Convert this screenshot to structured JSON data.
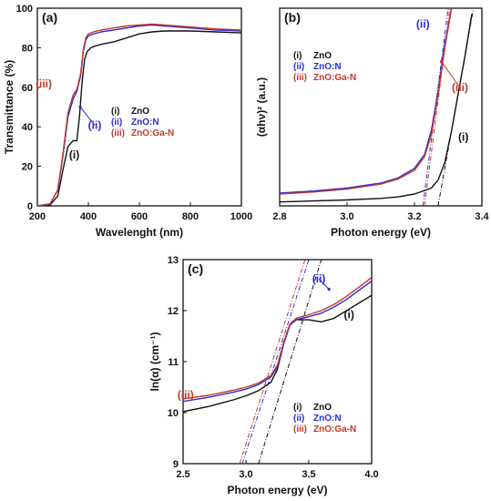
{
  "colors": {
    "zno": "#111111",
    "zno_n": "#2b2bd6",
    "zno_ga_n": "#c0392b",
    "axis": "#111111"
  },
  "chart_data": [
    {
      "id": "a",
      "type": "line",
      "panel_label": "(a)",
      "xlabel": "Wavelenght (nm)",
      "ylabel": "Transmittance (%)",
      "xlim": [
        200,
        1000
      ],
      "ylim": [
        0,
        100
      ],
      "xticks": [
        200,
        400,
        600,
        800,
        1000
      ],
      "yticks": [
        0,
        20,
        40,
        60,
        80,
        100
      ],
      "legend": {
        "position": "center-right",
        "entries": [
          {
            "num": "(i)",
            "name": "ZnO",
            "series": 0
          },
          {
            "num": "(ii)",
            "name": "ZnO:N",
            "series": 1
          },
          {
            "num": "(iii)",
            "name": "ZnO:Ga-N",
            "series": 2
          }
        ]
      },
      "annotations": [
        {
          "text": "(i)",
          "series": 0,
          "x": 345,
          "y": 24,
          "arrow": false
        },
        {
          "text": "(ii)",
          "series": 1,
          "x": 425,
          "y": 39,
          "arrow": true,
          "tx": 368,
          "ty": 50
        },
        {
          "text": "(iii)",
          "series": 2,
          "x": 225,
          "y": 60,
          "arrow": false
        }
      ],
      "series": [
        {
          "name": "ZnO",
          "x": [
            200,
            250,
            280,
            300,
            320,
            340,
            355,
            365,
            375,
            385,
            395,
            410,
            430,
            460,
            500,
            550,
            600,
            650,
            700,
            800,
            900,
            1000
          ],
          "y": [
            0,
            0.5,
            5,
            18,
            30,
            33,
            33,
            45,
            62,
            74,
            78,
            80,
            81,
            82,
            83,
            85,
            87,
            88,
            88.5,
            88.5,
            88,
            87.5
          ]
        },
        {
          "name": "ZnO:N",
          "x": [
            200,
            250,
            280,
            300,
            320,
            340,
            355,
            370,
            380,
            390,
            400,
            420,
            450,
            500,
            550,
            600,
            650,
            700,
            800,
            900,
            1000
          ],
          "y": [
            0,
            1,
            8,
            25,
            45,
            54,
            58,
            66,
            78,
            84,
            86,
            87,
            88,
            89,
            90,
            91,
            91.5,
            91,
            90,
            89,
            88.5
          ]
        },
        {
          "name": "ZnO:Ga-N",
          "x": [
            200,
            250,
            280,
            300,
            320,
            340,
            355,
            370,
            380,
            390,
            400,
            420,
            450,
            500,
            550,
            600,
            650,
            700,
            800,
            900,
            1000
          ],
          "y": [
            0,
            1,
            8,
            26,
            47,
            56,
            59,
            67,
            79,
            85,
            87,
            88,
            89,
            90,
            91,
            91.5,
            92,
            91.5,
            90.5,
            89.5,
            89
          ]
        }
      ]
    },
    {
      "id": "b",
      "type": "line",
      "panel_label": "(b)",
      "xlabel": "Photon energy (eV)",
      "ylabel": "(αhν)² (a.u.)",
      "xlim": [
        2.8,
        3.4
      ],
      "ylim": [
        0,
        1
      ],
      "xticks": [
        2.8,
        3.0,
        3.2,
        3.4
      ],
      "yticks": [],
      "legend": {
        "position": "upper-left",
        "entries": [
          {
            "num": "(i)",
            "name": "ZnO",
            "series": 0
          },
          {
            "num": "(ii)",
            "name": "ZnO:N",
            "series": 1
          },
          {
            "num": "(iii)",
            "name": "ZnO:Ga-N",
            "series": 2
          }
        ]
      },
      "annotations": [
        {
          "text": "(ii)",
          "series": 1,
          "x": 3.225,
          "y": 0.9,
          "arrow": false
        },
        {
          "text": "(iii)",
          "series": 2,
          "x": 3.335,
          "y": 0.58,
          "arrow": true,
          "tx": 3.28,
          "ty": 0.73
        },
        {
          "text": "(i)",
          "series": 0,
          "x": 3.345,
          "y": 0.33,
          "arrow": false
        }
      ],
      "fits": [
        {
          "series": 0,
          "x": [
            3.27,
            3.375
          ],
          "y": [
            0,
            1
          ]
        },
        {
          "series": 1,
          "x": [
            3.225,
            3.3
          ],
          "y": [
            0,
            1
          ]
        },
        {
          "series": 2,
          "x": [
            3.23,
            3.305
          ],
          "y": [
            0,
            1
          ]
        }
      ],
      "series": [
        {
          "name": "ZnO",
          "x": [
            2.8,
            2.9,
            3.0,
            3.1,
            3.15,
            3.2,
            3.25,
            3.27,
            3.29,
            3.31,
            3.33,
            3.35,
            3.37
          ],
          "y": [
            0.02,
            0.025,
            0.03,
            0.038,
            0.045,
            0.06,
            0.09,
            0.13,
            0.22,
            0.38,
            0.57,
            0.76,
            0.97
          ]
        },
        {
          "name": "ZnO:N",
          "x": [
            2.8,
            2.9,
            3.0,
            3.1,
            3.15,
            3.2,
            3.23,
            3.25,
            3.27,
            3.29,
            3.31
          ],
          "y": [
            0.065,
            0.075,
            0.09,
            0.115,
            0.14,
            0.19,
            0.26,
            0.38,
            0.58,
            0.82,
            1.0
          ]
        },
        {
          "name": "ZnO:Ga-N",
          "x": [
            2.8,
            2.9,
            3.0,
            3.1,
            3.15,
            3.2,
            3.23,
            3.25,
            3.27,
            3.29,
            3.31
          ],
          "y": [
            0.06,
            0.07,
            0.085,
            0.11,
            0.135,
            0.18,
            0.25,
            0.36,
            0.56,
            0.8,
            1.0
          ]
        }
      ]
    },
    {
      "id": "c",
      "type": "line",
      "panel_label": "(c)",
      "xlabel": "Photon energy (eV)",
      "ylabel": "ln(α) (cm⁻¹)",
      "xlim": [
        2.5,
        4.0
      ],
      "ylim": [
        9,
        13
      ],
      "xticks": [
        2.5,
        3.0,
        3.5,
        4.0
      ],
      "yticks": [
        9,
        10,
        11,
        12,
        13
      ],
      "legend": {
        "position": "lower-right",
        "entries": [
          {
            "num": "(i)",
            "name": "ZnO",
            "series": 0
          },
          {
            "num": "(ii)",
            "name": "ZnO:N",
            "series": 1
          },
          {
            "num": "(iii)",
            "name": "ZnO:Ga-N",
            "series": 2
          }
        ]
      },
      "annotations": [
        {
          "text": "(ii)",
          "series": 1,
          "x": 3.58,
          "y": 12.55,
          "arrow": true,
          "tx": 3.66,
          "ty": 12.42
        },
        {
          "text": "(i)",
          "series": 0,
          "x": 3.82,
          "y": 11.85,
          "arrow": false
        },
        {
          "text": "(iii)",
          "series": 2,
          "x": 2.52,
          "y": 10.28,
          "arrow": false
        }
      ],
      "fits": [
        {
          "series": 0,
          "x": [
            3.1,
            3.6
          ],
          "y": [
            9,
            13
          ]
        },
        {
          "series": 1,
          "x": [
            2.97,
            3.5
          ],
          "y": [
            9,
            13
          ]
        },
        {
          "series": 2,
          "x": [
            2.95,
            3.47
          ],
          "y": [
            9,
            13
          ]
        }
      ],
      "series": [
        {
          "name": "ZnO",
          "x": [
            2.5,
            2.7,
            2.9,
            3.0,
            3.1,
            3.2,
            3.25,
            3.3,
            3.35,
            3.4,
            3.5,
            3.6,
            3.7,
            3.8,
            3.9,
            4.0
          ],
          "y": [
            10.02,
            10.12,
            10.25,
            10.33,
            10.43,
            10.6,
            10.85,
            11.35,
            11.72,
            11.82,
            11.82,
            11.78,
            11.85,
            12.0,
            12.15,
            12.3
          ]
        },
        {
          "name": "ZnO:N",
          "x": [
            2.5,
            2.7,
            2.9,
            3.0,
            3.1,
            3.2,
            3.25,
            3.3,
            3.35,
            3.4,
            3.5,
            3.6,
            3.7,
            3.8,
            3.9,
            4.0
          ],
          "y": [
            10.22,
            10.3,
            10.4,
            10.46,
            10.55,
            10.7,
            10.9,
            11.35,
            11.72,
            11.82,
            11.88,
            11.95,
            12.07,
            12.22,
            12.4,
            12.58
          ]
        },
        {
          "name": "ZnO:Ga-N",
          "x": [
            2.5,
            2.7,
            2.9,
            3.0,
            3.1,
            3.2,
            3.25,
            3.3,
            3.35,
            3.4,
            3.5,
            3.6,
            3.7,
            3.8,
            3.9,
            4.0
          ],
          "y": [
            10.27,
            10.34,
            10.44,
            10.5,
            10.58,
            10.73,
            10.93,
            11.38,
            11.74,
            11.85,
            11.92,
            12.0,
            12.12,
            12.28,
            12.46,
            12.65
          ]
        }
      ]
    }
  ]
}
